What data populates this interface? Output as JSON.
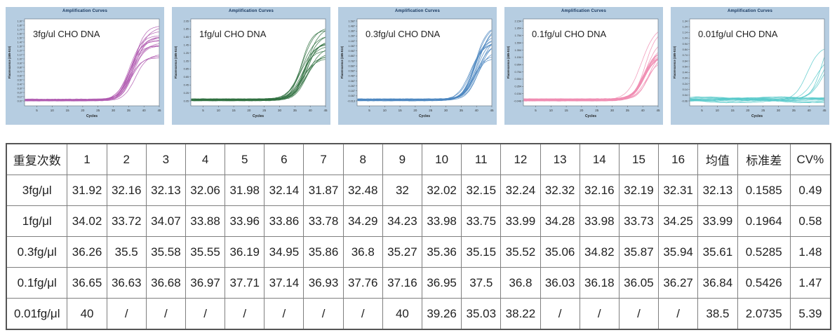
{
  "charts": {
    "title": "Amplification Curves",
    "xlabel": "Cycles",
    "ylabel": "Fluorescence (465-510)",
    "x_ticks": [
      "5",
      "10",
      "15",
      "20",
      "25",
      "30",
      "35",
      "40",
      "45"
    ],
    "frame_color": "#b6cde1",
    "title_color": "#16355c",
    "panels": [
      {
        "annotation": "3fg/ul CHO DNA",
        "color": "#b05bb0",
        "y_ticks": [
          "1.97",
          "1.87",
          "1.77",
          "1.67",
          "1.57",
          "1.47",
          "1.37",
          "1.27",
          "1.17",
          "1.07",
          "0.97",
          "0.87",
          "0.77",
          "0.67",
          "0.57",
          "0.47",
          "0.37",
          "0.27",
          "0.17",
          "0.07"
        ]
      },
      {
        "annotation": "1fg/ul CHO DNA",
        "color": "#2f7040",
        "y_ticks": [
          "2.05",
          "1.85",
          "1.65",
          "1.45",
          "1.25",
          "1.05",
          "0.85",
          "0.65",
          "0.45",
          "0.25",
          "0.05"
        ]
      },
      {
        "annotation": "0.3fg/ul CHO DNA",
        "color": "#4b86c0",
        "y_ticks": [
          "1.587",
          "1.487",
          "1.387",
          "1.287",
          "1.187",
          "1.087",
          "0.987",
          "0.887",
          "0.787",
          "0.687",
          "0.587",
          "0.487",
          "0.387",
          "0.287",
          "0.187",
          "0.087",
          "-0.013"
        ]
      },
      {
        "annotation": "0.1fg/ul CHO DNA",
        "color": "#f08cb2",
        "y_ticks": [
          "2.154",
          "1.954",
          "1.754",
          "1.554",
          "1.354",
          "1.154",
          "0.954",
          "0.754",
          "0.554",
          "0.354",
          "0.154",
          "-0.046"
        ]
      },
      {
        "annotation": "0.01fg/ul CHO DNA",
        "color": "#57c9ca",
        "y_ticks": [
          "1.34",
          "1.24",
          "1.14",
          "1.04",
          "0.94",
          "0.84",
          "0.74",
          "0.64",
          "0.54",
          "0.44",
          "0.34",
          "0.24",
          "0.14",
          "0.04",
          "-0.06"
        ]
      }
    ]
  },
  "chart_data": [
    {
      "type": "line",
      "title": "Amplification Curves",
      "annotation": "3fg/ul CHO DNA",
      "xlabel": "Cycles",
      "ylabel": "Fluorescence (465-510)",
      "x_range": [
        1,
        45
      ],
      "ylim": [
        0.07,
        1.97
      ],
      "n_replicates": 16,
      "curve_shape": "sigmoid qPCR amplification curves (flat baseline, exponential rise after Ct, plateau)",
      "ct_values": [
        31.92,
        32.16,
        32.13,
        32.06,
        31.98,
        32.14,
        31.87,
        32.48,
        32,
        32.02,
        32.15,
        32.24,
        32.32,
        32.16,
        32.19,
        32.31
      ],
      "color": "#b05bb0",
      "legend": "none",
      "grid": false
    },
    {
      "type": "line",
      "title": "Amplification Curves",
      "annotation": "1fg/ul CHO DNA",
      "xlabel": "Cycles",
      "ylabel": "Fluorescence (465-510)",
      "x_range": [
        1,
        45
      ],
      "ylim": [
        0.05,
        2.05
      ],
      "n_replicates": 16,
      "curve_shape": "sigmoid qPCR amplification curves",
      "ct_values": [
        34.02,
        33.72,
        34.07,
        33.88,
        33.96,
        33.86,
        33.78,
        34.29,
        34.23,
        33.98,
        33.75,
        33.99,
        34.28,
        33.98,
        33.73,
        34.25
      ],
      "color": "#2f7040",
      "legend": "none",
      "grid": false
    },
    {
      "type": "line",
      "title": "Amplification Curves",
      "annotation": "0.3fg/ul CHO DNA",
      "xlabel": "Cycles",
      "ylabel": "Fluorescence (465-510)",
      "x_range": [
        1,
        45
      ],
      "ylim": [
        -0.013,
        1.587
      ],
      "n_replicates": 16,
      "curve_shape": "sigmoid qPCR amplification curves",
      "ct_values": [
        36.26,
        35.5,
        35.58,
        35.55,
        36.19,
        34.95,
        35.86,
        36.8,
        35.27,
        35.36,
        35.15,
        35.52,
        35.06,
        34.82,
        35.87,
        35.94
      ],
      "color": "#4b86c0",
      "legend": "none",
      "grid": false
    },
    {
      "type": "line",
      "title": "Amplification Curves",
      "annotation": "0.1fg/ul CHO DNA",
      "xlabel": "Cycles",
      "ylabel": "Fluorescence (465-510)",
      "x_range": [
        1,
        45
      ],
      "ylim": [
        -0.046,
        2.154
      ],
      "n_replicates": 16,
      "curve_shape": "sigmoid qPCR amplification curves",
      "ct_values": [
        36.65,
        36.63,
        36.68,
        36.97,
        37.71,
        37.14,
        36.93,
        37.76,
        37.16,
        36.95,
        37.5,
        36.8,
        36.03,
        36.18,
        36.05,
        36.27
      ],
      "color": "#f08cb2",
      "legend": "none",
      "grid": false
    },
    {
      "type": "line",
      "title": "Amplification Curves",
      "annotation": "0.01fg/ul CHO DNA",
      "xlabel": "Cycles",
      "ylabel": "Fluorescence (465-510)",
      "x_range": [
        1,
        45
      ],
      "ylim": [
        -0.06,
        1.34
      ],
      "n_replicates": 16,
      "curve_shape": "only 5 replicates amplify (late sigmoids), remaining 11 stay flat at baseline",
      "ct_values": [
        40,
        null,
        null,
        null,
        null,
        null,
        null,
        null,
        40,
        39.26,
        35.03,
        38.22,
        null,
        null,
        null,
        null
      ],
      "color": "#57c9ca",
      "legend": "none",
      "grid": false
    }
  ],
  "table": {
    "headers": [
      "重复次数",
      "1",
      "2",
      "3",
      "4",
      "5",
      "6",
      "7",
      "8",
      "9",
      "10",
      "11",
      "12",
      "13",
      "14",
      "15",
      "16",
      "均值",
      "标准差",
      "CV%"
    ],
    "rows": [
      {
        "label": "3fg/μl",
        "values": [
          "31.92",
          "32.16",
          "32.13",
          "32.06",
          "31.98",
          "32.14",
          "31.87",
          "32.48",
          "32",
          "32.02",
          "32.15",
          "32.24",
          "32.32",
          "32.16",
          "32.19",
          "32.31"
        ],
        "mean": "32.13",
        "sd": "0.1585",
        "cv": "0.49"
      },
      {
        "label": "1fg/μl",
        "values": [
          "34.02",
          "33.72",
          "34.07",
          "33.88",
          "33.96",
          "33.86",
          "33.78",
          "34.29",
          "34.23",
          "33.98",
          "33.75",
          "33.99",
          "34.28",
          "33.98",
          "33.73",
          "34.25"
        ],
        "mean": "33.99",
        "sd": "0.1964",
        "cv": "0.58"
      },
      {
        "label": "0.3fg/μl",
        "values": [
          "36.26",
          "35.5",
          "35.58",
          "35.55",
          "36.19",
          "34.95",
          "35.86",
          "36.8",
          "35.27",
          "35.36",
          "35.15",
          "35.52",
          "35.06",
          "34.82",
          "35.87",
          "35.94"
        ],
        "mean": "35.61",
        "sd": "0.5285",
        "cv": "1.48"
      },
      {
        "label": "0.1fg/μl",
        "values": [
          "36.65",
          "36.63",
          "36.68",
          "36.97",
          "37.71",
          "37.14",
          "36.93",
          "37.76",
          "37.16",
          "36.95",
          "37.5",
          "36.8",
          "36.03",
          "36.18",
          "36.05",
          "36.27"
        ],
        "mean": "36.84",
        "sd": "0.5426",
        "cv": "1.47"
      },
      {
        "label": "0.01fg/μl",
        "values": [
          "40",
          "/",
          "/",
          "/",
          "/",
          "/",
          "/",
          "/",
          "40",
          "39.26",
          "35.03",
          "38.22",
          "/",
          "/",
          "/",
          "/"
        ],
        "mean": "38.5",
        "sd": "2.0735",
        "cv": "5.39"
      }
    ]
  }
}
